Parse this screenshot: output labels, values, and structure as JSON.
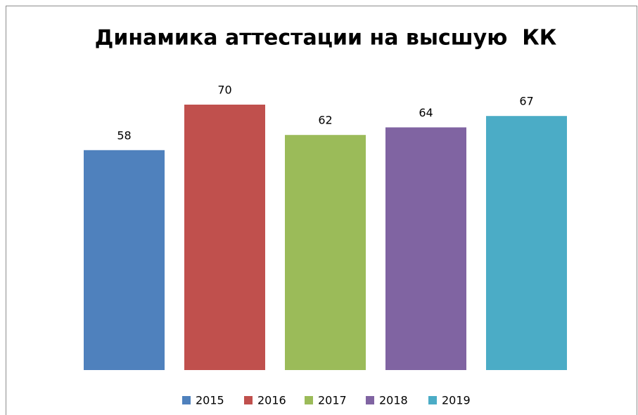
{
  "chart_data": {
    "type": "bar",
    "title": "Динамика аттестации на высшую  КК",
    "series": [
      {
        "name": "2015",
        "color": "#4f81bd",
        "values": [
          58
        ]
      },
      {
        "name": "2016",
        "color": "#c0504d",
        "values": [
          70
        ]
      },
      {
        "name": "2017",
        "color": "#9bbb59",
        "values": [
          62
        ]
      },
      {
        "name": "2018",
        "color": "#8064a2",
        "values": [
          64
        ]
      },
      {
        "name": "2019",
        "color": "#4bacc6",
        "values": [
          67
        ]
      }
    ],
    "ylim": [
      0,
      80
    ],
    "legend": "bottom"
  }
}
